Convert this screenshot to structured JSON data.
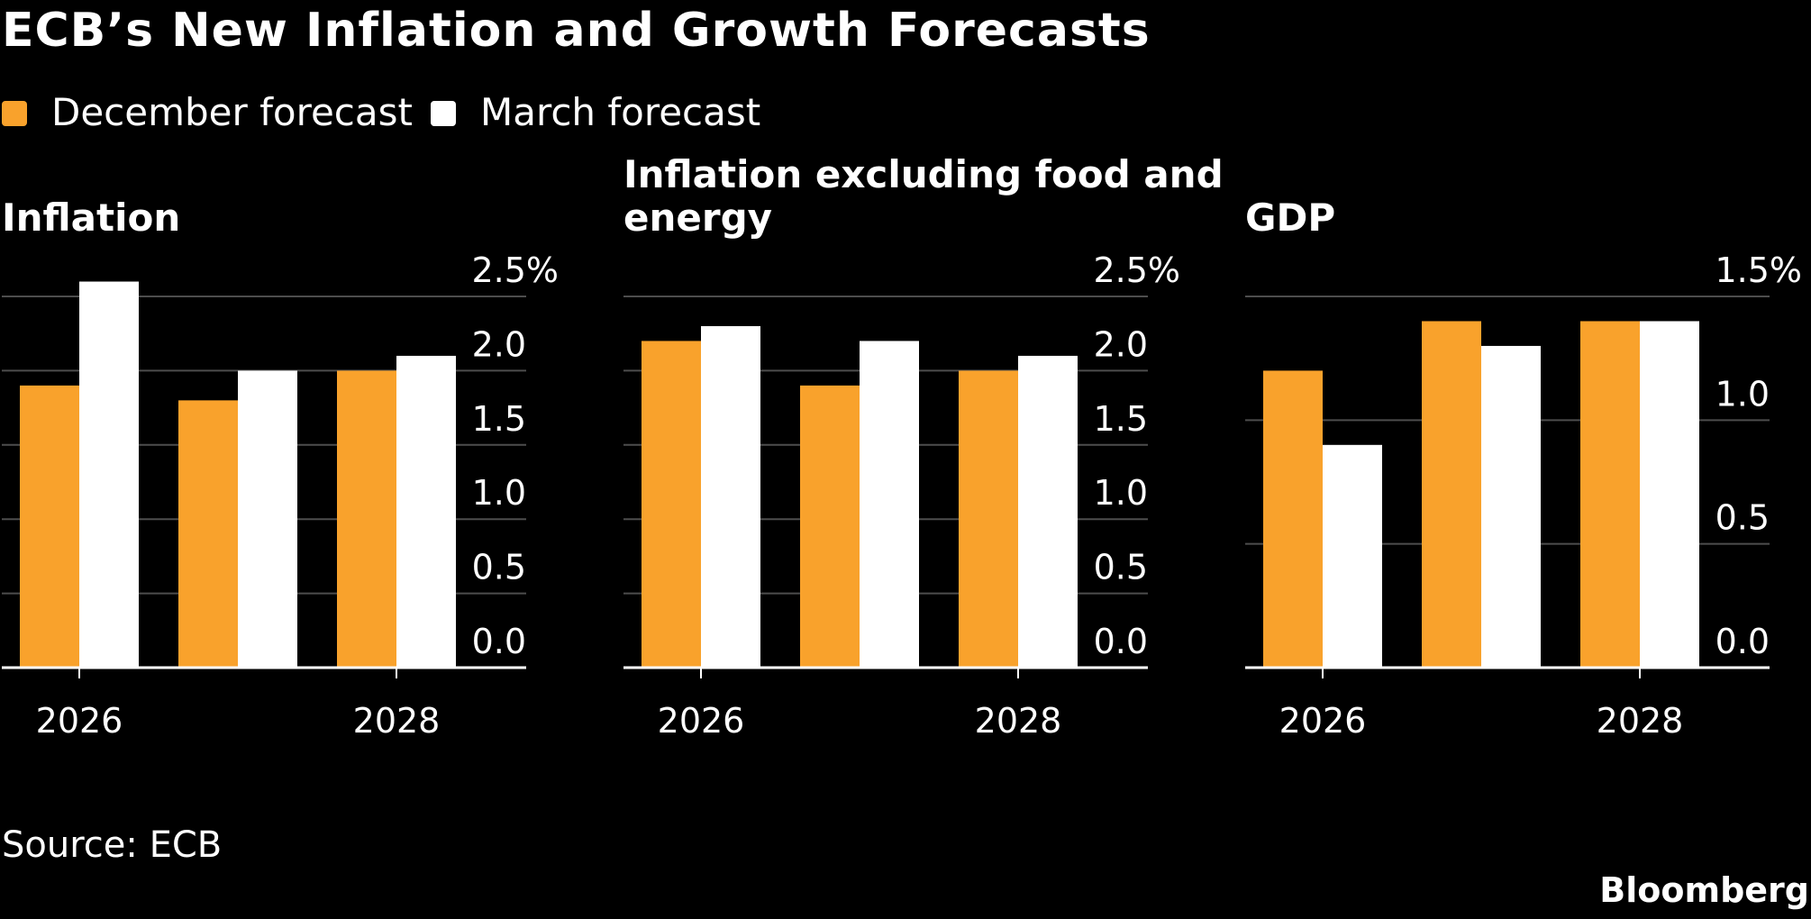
{
  "title": "ECB’s New Inflation and Growth Forecasts",
  "legend": [
    {
      "label": "December forecast",
      "color": "#f9a22c"
    },
    {
      "label": "March forecast",
      "color": "#ffffff"
    }
  ],
  "source": "Source: ECB",
  "brand": "Bloomberg",
  "chart_data": [
    {
      "type": "bar",
      "title": "Inflation",
      "x": [
        2026,
        2027,
        2028
      ],
      "x_tick_labels": [
        "2026",
        "",
        "2028"
      ],
      "series": [
        {
          "name": "December forecast",
          "values": [
            1.9,
            1.8,
            2.0
          ]
        },
        {
          "name": "March forecast",
          "values": [
            2.6,
            2.0,
            2.1
          ]
        }
      ],
      "ylim": [
        0,
        2.5
      ],
      "y_ticks": [
        0,
        0.5,
        1.0,
        1.5,
        2.0,
        2.5
      ],
      "y_tick_labels": [
        "0.0",
        "0.5",
        "1.0",
        "1.5",
        "2.0",
        "2.5%"
      ],
      "grid": true,
      "y_axis_side": "right"
    },
    {
      "type": "bar",
      "title": "Inflation excluding food and energy",
      "title_lines": [
        "Inflation excluding food and",
        "energy"
      ],
      "x": [
        2026,
        2027,
        2028
      ],
      "x_tick_labels": [
        "2026",
        "",
        "2028"
      ],
      "series": [
        {
          "name": "December forecast",
          "values": [
            2.2,
            1.9,
            2.0
          ]
        },
        {
          "name": "March forecast",
          "values": [
            2.3,
            2.2,
            2.1
          ]
        }
      ],
      "ylim": [
        0,
        2.5
      ],
      "y_ticks": [
        0,
        0.5,
        1.0,
        1.5,
        2.0,
        2.5
      ],
      "y_tick_labels": [
        "0.0",
        "0.5",
        "1.0",
        "1.5",
        "2.0",
        "2.5%"
      ],
      "grid": true,
      "y_axis_side": "right"
    },
    {
      "type": "bar",
      "title": "GDP",
      "x": [
        2026,
        2027,
        2028
      ],
      "x_tick_labels": [
        "2026",
        "",
        "2028"
      ],
      "series": [
        {
          "name": "December forecast",
          "values": [
            1.2,
            1.4,
            1.4
          ]
        },
        {
          "name": "March forecast",
          "values": [
            0.9,
            1.3,
            1.4
          ]
        }
      ],
      "ylim": [
        0,
        1.5
      ],
      "y_ticks": [
        0,
        0.5,
        1.0,
        1.5
      ],
      "y_tick_labels": [
        "0.0",
        "0.5",
        "1.0",
        "1.5%"
      ],
      "grid": true,
      "y_axis_side": "right"
    }
  ]
}
